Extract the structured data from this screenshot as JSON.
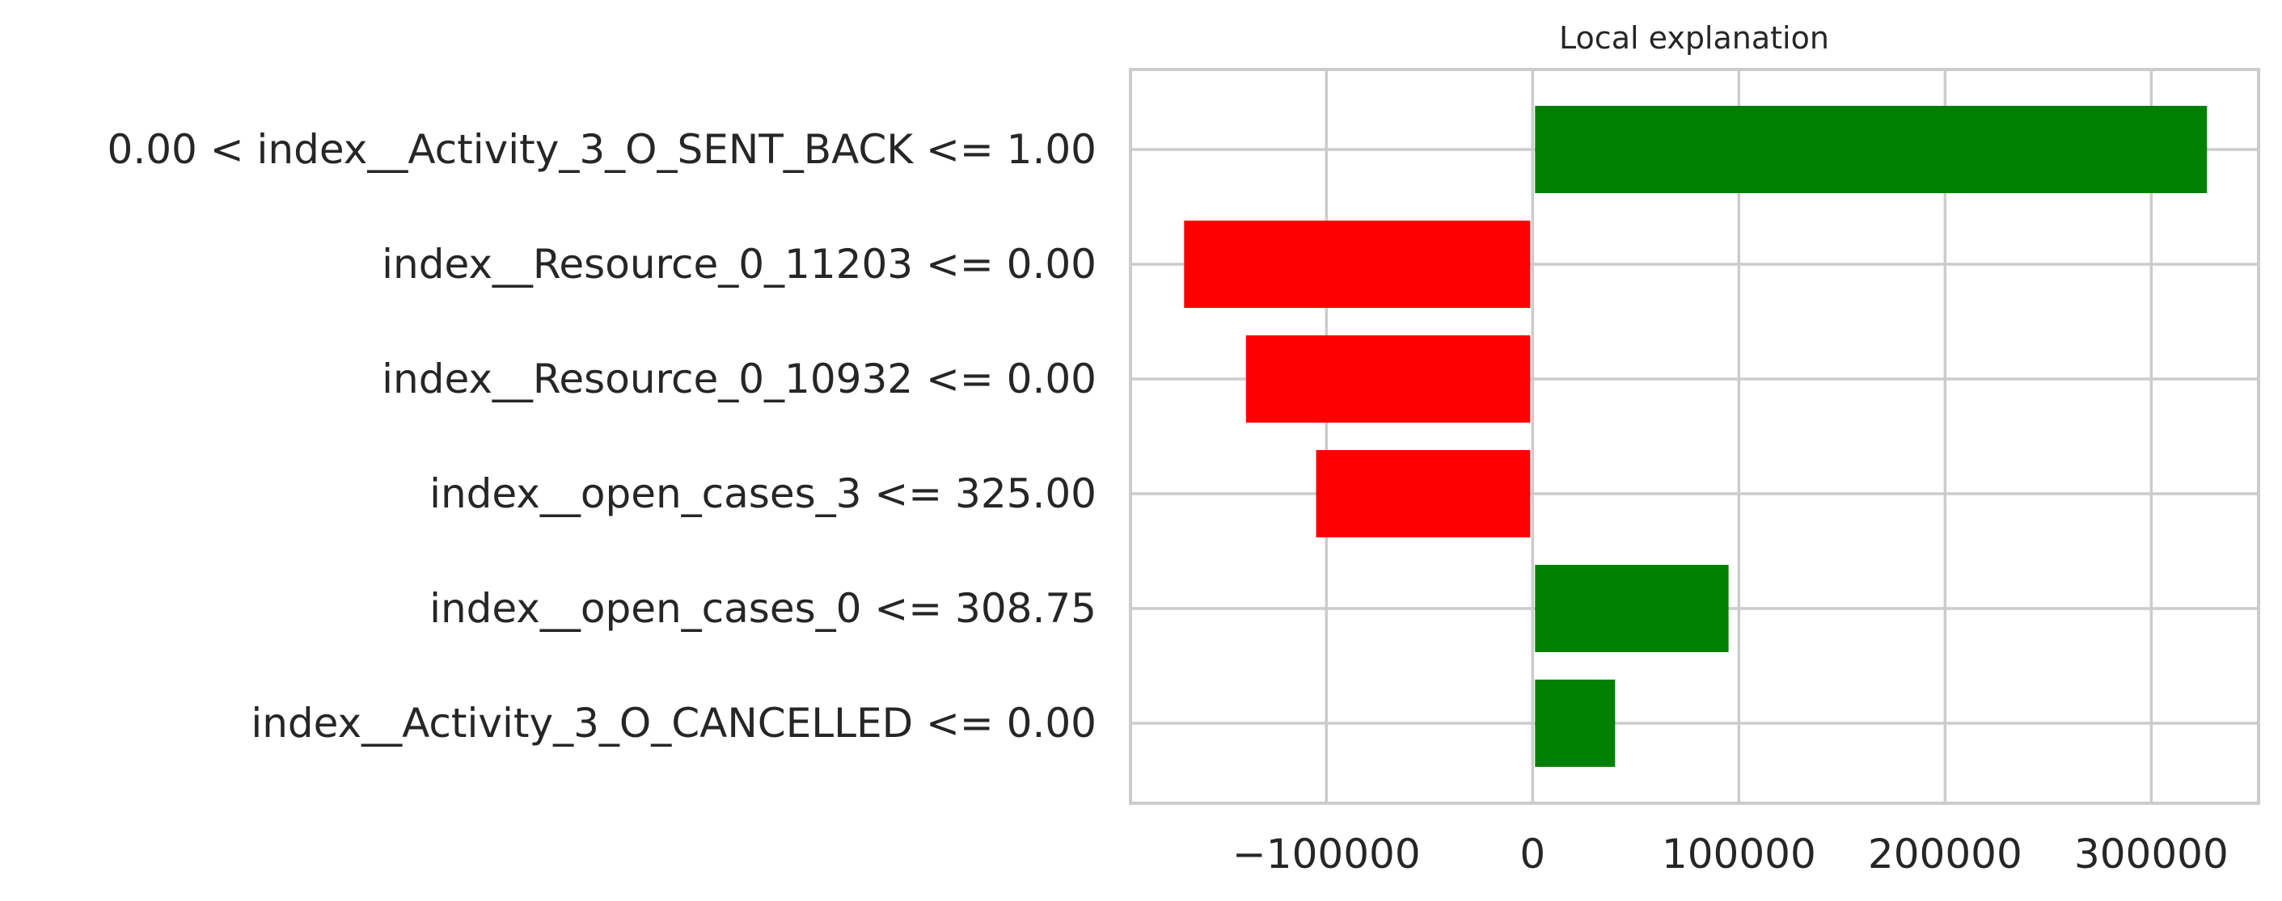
{
  "chart_data": {
    "type": "bar",
    "orientation": "horizontal",
    "title": "Local explanation",
    "xlabel": "",
    "ylabel": "",
    "categories": [
      "0.00 < index__Activity_3_O_SENT_BACK <= 1.00",
      "index__Resource_0_11203 <= 0.00",
      "index__Resource_0_10932 <= 0.00",
      "index__open_cases_3 <= 325.00",
      "index__open_cases_0 <= 308.75",
      "index__Activity_3_O_CANCELLED <= 0.00"
    ],
    "values": [
      327000,
      -169000,
      -139000,
      -105000,
      95000,
      40000
    ],
    "xlim": [
      -195000,
      352000
    ],
    "xticks": [
      -100000,
      0,
      100000,
      200000,
      300000
    ],
    "xtick_labels": [
      "−100000",
      "0",
      "100000",
      "200000",
      "300000"
    ],
    "positive_color": "#008000",
    "negative_color": "#ff0000",
    "grid": true,
    "legend": "none"
  }
}
